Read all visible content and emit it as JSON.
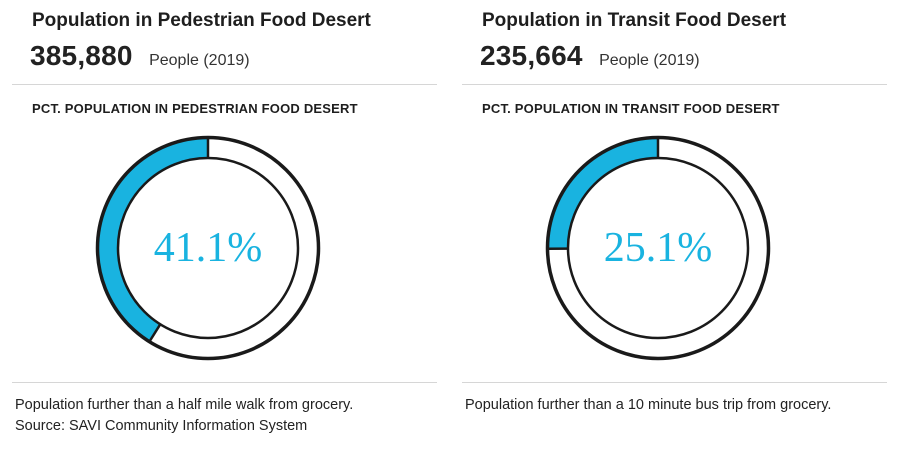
{
  "chart_data": [
    {
      "type": "pie",
      "title": "Population in Pedestrian Food Desert",
      "headline_value": "385,880",
      "headline_unit": "People (2019)",
      "subtitle": "PCT. POPULATION IN PEDESTRIAN FOOD DESERT",
      "percent": 41.1,
      "percent_label": "41.1%",
      "note": "Population further than a half mile walk from grocery.",
      "source": "Source: SAVI Community Information System",
      "colors": {
        "fill": "#19b3e0",
        "ring": "#ffffff",
        "outline": "#1a1a1a",
        "label": "#19b3e0"
      }
    },
    {
      "type": "pie",
      "title": "Population in Transit Food Desert",
      "headline_value": "235,664",
      "headline_unit": "People (2019)",
      "subtitle": "PCT. POPULATION IN TRANSIT FOOD DESERT",
      "percent": 25.1,
      "percent_label": "25.1%",
      "note": "Population further than a 10 minute bus trip from grocery.",
      "colors": {
        "fill": "#19b3e0",
        "ring": "#ffffff",
        "outline": "#1a1a1a",
        "label": "#19b3e0"
      }
    }
  ]
}
